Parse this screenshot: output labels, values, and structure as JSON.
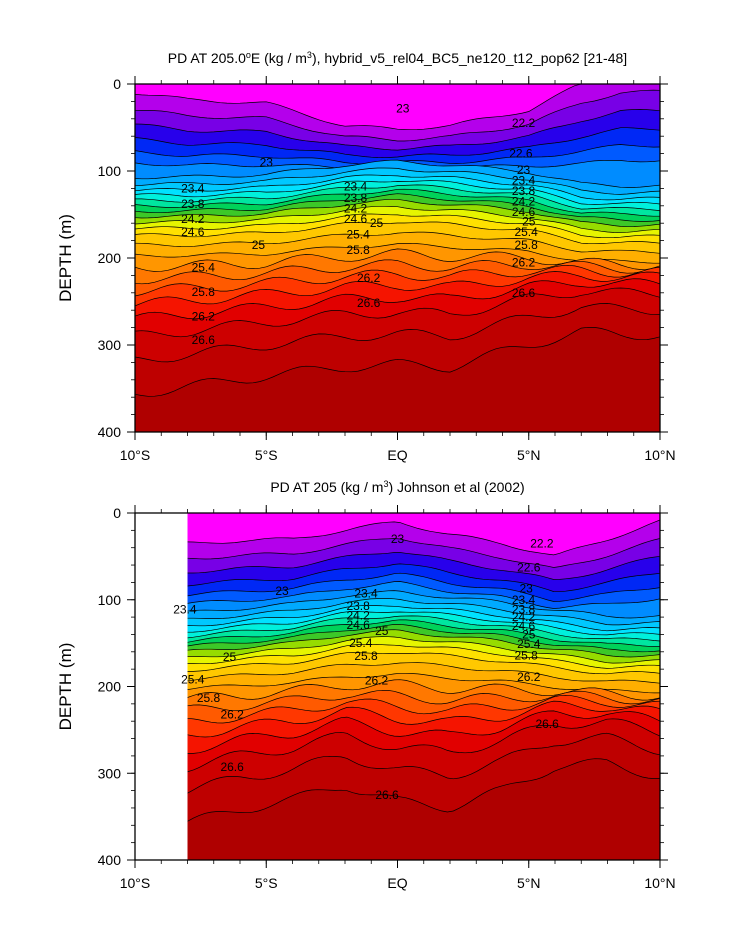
{
  "chart_data": [
    {
      "type": "heatmap",
      "title": "PD AT 205.0",
      "title_sup": "o",
      "title_mid": "E (kg / m",
      "title_sup2": "3",
      "title_end": "), hybrid_v5_rel04_BC5_ne120_t12_pop62 [21-48]",
      "ylabel": "DEPTH (m)",
      "xlim": [
        -10,
        10
      ],
      "ylim": [
        0,
        400
      ],
      "y_reversed": true,
      "x_ticks": [
        {
          "value": -10,
          "label": "10°S"
        },
        {
          "value": -5,
          "label": "5°S"
        },
        {
          "value": 0,
          "label": "EQ"
        },
        {
          "value": 5,
          "label": "5°N"
        },
        {
          "value": 10,
          "label": "10°N"
        }
      ],
      "y_ticks": [
        {
          "value": 0,
          "label": "0"
        },
        {
          "value": 100,
          "label": "100"
        },
        {
          "value": 200,
          "label": "200"
        },
        {
          "value": 300,
          "label": "300"
        },
        {
          "value": 400,
          "label": "400"
        }
      ],
      "data_start_x": -10,
      "profile_x": [
        -10,
        -8,
        -5,
        -2,
        0,
        2,
        5,
        7,
        8.5,
        10
      ],
      "shift_surface": [
        -20,
        -12,
        -8,
        18,
        22,
        18,
        0,
        -30,
        -44,
        -45
      ],
      "shift_thermo": [
        0,
        0,
        -3,
        -14,
        -18,
        -14,
        -6,
        8,
        10,
        10
      ],
      "shift_deep": [
        0,
        -8,
        -20,
        -28,
        -30,
        -28,
        -55,
        -73,
        -70,
        -70
      ],
      "contour_labels": [
        {
          "text": "23",
          "x": 0.2,
          "y": 28
        },
        {
          "text": "22.2",
          "x": 4.8,
          "y": 45
        },
        {
          "text": "22.6",
          "x": 4.7,
          "y": 80
        },
        {
          "text": "23",
          "x": -5,
          "y": 90
        },
        {
          "text": "23",
          "x": 4.8,
          "y": 99
        },
        {
          "text": "23.4",
          "x": -7.8,
          "y": 120
        },
        {
          "text": "23.4",
          "x": -1.6,
          "y": 118
        },
        {
          "text": "23.4",
          "x": 4.8,
          "y": 111
        },
        {
          "text": "23.8",
          "x": -7.8,
          "y": 138
        },
        {
          "text": "23.8",
          "x": -1.6,
          "y": 131
        },
        {
          "text": "23.8",
          "x": 4.8,
          "y": 123
        },
        {
          "text": "24.2",
          "x": -7.8,
          "y": 155
        },
        {
          "text": "24.2",
          "x": -1.6,
          "y": 143
        },
        {
          "text": "24.2",
          "x": 4.8,
          "y": 135
        },
        {
          "text": "24.6",
          "x": -7.8,
          "y": 170
        },
        {
          "text": "24.6",
          "x": -1.6,
          "y": 155
        },
        {
          "text": "24.6",
          "x": 4.8,
          "y": 147
        },
        {
          "text": "25",
          "x": -5.3,
          "y": 185
        },
        {
          "text": "25",
          "x": -0.8,
          "y": 160
        },
        {
          "text": "25",
          "x": 5,
          "y": 158
        },
        {
          "text": "25.4",
          "x": -7.4,
          "y": 211
        },
        {
          "text": "25.4",
          "x": -1.5,
          "y": 173
        },
        {
          "text": "25.4",
          "x": 4.9,
          "y": 170
        },
        {
          "text": "25.8",
          "x": -7.4,
          "y": 239
        },
        {
          "text": "25.8",
          "x": -1.5,
          "y": 191
        },
        {
          "text": "25.8",
          "x": 4.9,
          "y": 185
        },
        {
          "text": "26.2",
          "x": -7.4,
          "y": 267
        },
        {
          "text": "26.2",
          "x": -1.1,
          "y": 223
        },
        {
          "text": "26.2",
          "x": 4.8,
          "y": 205
        },
        {
          "text": "26.6",
          "x": -7.4,
          "y": 294
        },
        {
          "text": "26.6",
          "x": -1.1,
          "y": 252
        },
        {
          "text": "26.6",
          "x": 4.8,
          "y": 240
        }
      ]
    },
    {
      "type": "heatmap",
      "title": "PD AT 205 (kg / m",
      "title_sup": "3",
      "title_end": ") Johnson et al (2002)",
      "ylabel": "DEPTH (m)",
      "xlim": [
        -10,
        10
      ],
      "ylim": [
        0,
        400
      ],
      "y_reversed": true,
      "x_ticks": [
        {
          "value": -10,
          "label": "10°S"
        },
        {
          "value": -5,
          "label": "5°S"
        },
        {
          "value": 0,
          "label": "EQ"
        },
        {
          "value": 5,
          "label": "5°N"
        },
        {
          "value": 10,
          "label": "10°N"
        }
      ],
      "y_ticks": [
        {
          "value": 0,
          "label": "0"
        },
        {
          "value": 100,
          "label": "100"
        },
        {
          "value": 200,
          "label": "200"
        },
        {
          "value": 300,
          "label": "300"
        },
        {
          "value": 400,
          "label": "400"
        }
      ],
      "data_start_x": -8,
      "profile_x": [
        -8,
        -6,
        -4,
        -2,
        0,
        2,
        4,
        6,
        8,
        10
      ],
      "shift_surface": [
        5,
        2,
        0,
        -10,
        -20,
        -5,
        5,
        20,
        0,
        -20
      ],
      "shift_thermo": [
        8,
        3,
        -2,
        -12,
        -16,
        -10,
        -4,
        5,
        12,
        12
      ],
      "shift_deep": [
        0,
        -15,
        -25,
        -40,
        -20,
        -15,
        -35,
        -65,
        -70,
        -55
      ],
      "contour_labels": [
        {
          "text": "23",
          "x": 0,
          "y": 30
        },
        {
          "text": "22.2",
          "x": 5.5,
          "y": 35
        },
        {
          "text": "22.6",
          "x": 5,
          "y": 63
        },
        {
          "text": "23",
          "x": -4.4,
          "y": 90
        },
        {
          "text": "23",
          "x": 4.9,
          "y": 87
        },
        {
          "text": "23.4",
          "x": -8.1,
          "y": 111
        },
        {
          "text": "23.4",
          "x": -1.2,
          "y": 93
        },
        {
          "text": "23.4",
          "x": 4.8,
          "y": 100
        },
        {
          "text": "23.8",
          "x": -1.5,
          "y": 107
        },
        {
          "text": "23.8",
          "x": 4.8,
          "y": 111
        },
        {
          "text": "24.2",
          "x": -1.5,
          "y": 118
        },
        {
          "text": "24.2",
          "x": 4.8,
          "y": 120
        },
        {
          "text": "24.6",
          "x": -1.5,
          "y": 129
        },
        {
          "text": "24.6",
          "x": 4.8,
          "y": 130
        },
        {
          "text": "25",
          "x": -6.4,
          "y": 166
        },
        {
          "text": "25",
          "x": -0.6,
          "y": 136
        },
        {
          "text": "25",
          "x": 5,
          "y": 140
        },
        {
          "text": "25.4",
          "x": -7.8,
          "y": 192
        },
        {
          "text": "25.4",
          "x": -1.4,
          "y": 150
        },
        {
          "text": "25.4",
          "x": 5,
          "y": 151
        },
        {
          "text": "25.8",
          "x": -7.2,
          "y": 213
        },
        {
          "text": "25.8",
          "x": -1.2,
          "y": 165
        },
        {
          "text": "25.8",
          "x": 4.9,
          "y": 164
        },
        {
          "text": "26.2",
          "x": -6.3,
          "y": 232
        },
        {
          "text": "26.2",
          "x": -0.8,
          "y": 193
        },
        {
          "text": "26.2",
          "x": 5,
          "y": 189
        },
        {
          "text": "26.6",
          "x": -6.3,
          "y": 293
        },
        {
          "text": "26.6",
          "x": -0.4,
          "y": 325
        },
        {
          "text": "26.6",
          "x": 5.7,
          "y": 243
        }
      ]
    }
  ]
}
